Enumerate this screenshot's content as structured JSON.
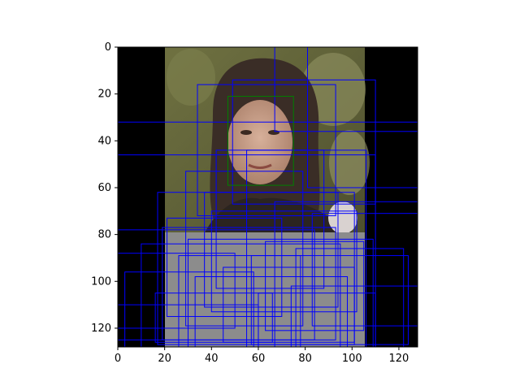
{
  "figure": {
    "image_description_icon": "woman-portrait-photo",
    "background_color": "#ffffff",
    "image_pad_color": "#000000"
  },
  "chart_data": {
    "type": "image-with-bounding-boxes",
    "title": "",
    "xlabel": "",
    "ylabel": "",
    "xlim": [
      0,
      128
    ],
    "ylim": [
      128,
      0
    ],
    "x_ticks": [
      "0",
      "20",
      "40",
      "60",
      "80",
      "100",
      "120"
    ],
    "y_ticks": [
      "0",
      "20",
      "40",
      "60",
      "80",
      "100",
      "120"
    ],
    "grid": false,
    "legend": "none",
    "image_content": {
      "padding_left_x_range": [
        0,
        20
      ],
      "padding_right_x_range": [
        106,
        128
      ],
      "gray_fill_region": {
        "x": [
          20,
          106
        ],
        "y": [
          79,
          128
        ],
        "color": "#8c8c8c"
      }
    },
    "face_box": {
      "color": "#008000",
      "x0": 47,
      "y0": 21,
      "x1": 75,
      "y1": 59
    },
    "detection_box_color": "#0000ff",
    "detection_boxes": [
      [
        0,
        0,
        128,
        128
      ],
      [
        67,
        0,
        128,
        36
      ],
      [
        81,
        0,
        128,
        60
      ],
      [
        34,
        16,
        93,
        72
      ],
      [
        49,
        14,
        110,
        67
      ],
      [
        0,
        32,
        128,
        128
      ],
      [
        0,
        46,
        110,
        128
      ],
      [
        42,
        44,
        88,
        103
      ],
      [
        55,
        44,
        106,
        128
      ],
      [
        29,
        53,
        79,
        119
      ],
      [
        37,
        62,
        94,
        111
      ],
      [
        17,
        62,
        101,
        127
      ],
      [
        67,
        66,
        128,
        128
      ],
      [
        21,
        73,
        70,
        115
      ],
      [
        10,
        84,
        95,
        128
      ],
      [
        0,
        78,
        84,
        125
      ],
      [
        30,
        82,
        109,
        128
      ],
      [
        3,
        96,
        58,
        128
      ],
      [
        57,
        89,
        124,
        127
      ],
      [
        16,
        105,
        66,
        126
      ],
      [
        74,
        102,
        128,
        128
      ],
      [
        40,
        70,
        102,
        113
      ],
      [
        26,
        89,
        78,
        128
      ],
      [
        63,
        83,
        105,
        121
      ],
      [
        0,
        110,
        60,
        128
      ],
      [
        45,
        94,
        101,
        126
      ],
      [
        83,
        71,
        128,
        119
      ],
      [
        19,
        77,
        93,
        125
      ],
      [
        60,
        105,
        110,
        128
      ],
      [
        33,
        98,
        98,
        128
      ],
      [
        0,
        88,
        50,
        120
      ],
      [
        76,
        86,
        122,
        128
      ]
    ]
  }
}
